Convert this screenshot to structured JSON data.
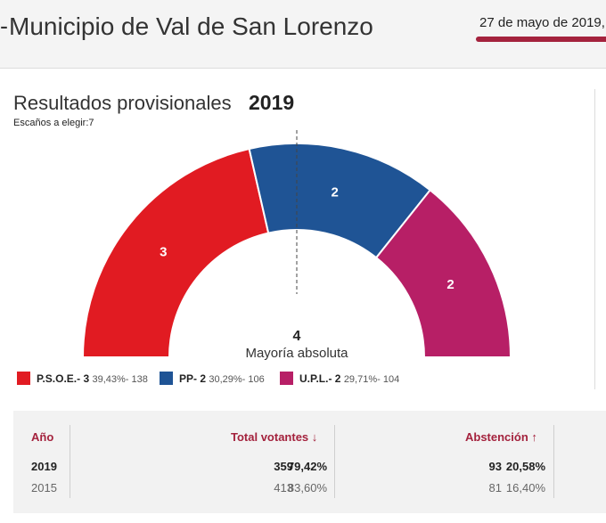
{
  "header": {
    "title": "Municipio de Val de San Lorenzo",
    "date": "27 de mayo de 2019,",
    "accent_color": "#a4223d"
  },
  "results": {
    "title": "Resultados provisionales",
    "year": "2019",
    "seats_label": "Escaños a elegir:",
    "seats_value": "7"
  },
  "chart_data": {
    "type": "hemicycle",
    "total_seats": 7,
    "majority_value": "4",
    "majority_label": "Mayoría absoluta",
    "parties": [
      {
        "name": "P.S.O.E.",
        "seats": 3,
        "seats_label": "3",
        "percent": "39,43%",
        "votes": "138",
        "color": "#e11b22"
      },
      {
        "name": "PP",
        "seats": 2,
        "seats_label": "2",
        "percent": "30,29%",
        "votes": "106",
        "color": "#1f5495"
      },
      {
        "name": "U.P.L.",
        "seats": 2,
        "seats_label": "2",
        "percent": "29,71%",
        "votes": "104",
        "color": "#b71f66"
      }
    ]
  },
  "legend": [
    {
      "name": "P.S.O.E.- 3",
      "detail": "39,43%- 138",
      "color": "#e11b22"
    },
    {
      "name": "PP- 2",
      "detail": "30,29%- 106",
      "color": "#1f5495"
    },
    {
      "name": "U.P.L.- 2",
      "detail": "29,71%- 104",
      "color": "#b71f66"
    }
  ],
  "table": {
    "headers": {
      "year": "Año",
      "voters": "Total votantes",
      "abstention": "Abstención"
    },
    "voters_arrow": "↓",
    "abstention_arrow": "↑",
    "rows": [
      {
        "year": "2019",
        "voters": "359",
        "voters_pct": "79,42%",
        "abst": "93",
        "abst_pct": "20,58%"
      },
      {
        "year": "2015",
        "voters": "413",
        "voters_pct": "83,60%",
        "abst": "81",
        "abst_pct": "16,40%"
      }
    ]
  }
}
